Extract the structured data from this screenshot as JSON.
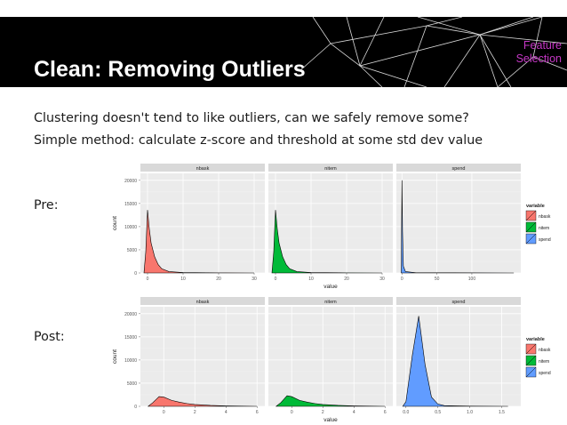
{
  "header": {
    "title": "Clean: Removing Outliers",
    "section_line1": "Feature",
    "section_line2": "Selection",
    "background": "#000000",
    "accent": "#c637c6"
  },
  "body": {
    "line1": "Clustering doesn't tend to like outliers, can we safely remove some?",
    "line2": "Simple method: calculate z-score and threshold at some std dev value",
    "pre_label": "Pre:",
    "post_label": "Post:"
  },
  "chart_data": [
    {
      "type": "area",
      "name": "pre",
      "ylabel": "count",
      "xlabel": "value",
      "ylim": [
        0,
        21500
      ],
      "yticks": [
        0,
        5000,
        10000,
        15000,
        20000
      ],
      "facets": [
        {
          "title": "nbask",
          "xlim": [
            -2,
            33
          ],
          "xticks": [
            0,
            10,
            20,
            30
          ],
          "points": [
            [
              -1,
              0
            ],
            [
              -0.5,
              4500
            ],
            [
              0,
              13600
            ],
            [
              0.5,
              9500
            ],
            [
              1,
              6500
            ],
            [
              2,
              3500
            ],
            [
              3,
              1800
            ],
            [
              4,
              900
            ],
            [
              6,
              300
            ],
            [
              10,
              80
            ],
            [
              20,
              20
            ],
            [
              30,
              0
            ]
          ]
        },
        {
          "title": "nitem",
          "xlim": [
            -2,
            33
          ],
          "xticks": [
            0,
            10,
            20,
            30
          ],
          "points": [
            [
              -1,
              0
            ],
            [
              -0.5,
              4500
            ],
            [
              0,
              13600
            ],
            [
              0.5,
              9500
            ],
            [
              1,
              6500
            ],
            [
              2,
              3500
            ],
            [
              3,
              1800
            ],
            [
              4,
              900
            ],
            [
              6,
              300
            ],
            [
              10,
              80
            ],
            [
              20,
              20
            ],
            [
              30,
              0
            ]
          ]
        },
        {
          "title": "spend",
          "xlim": [
            -8,
            170
          ],
          "xticks": [
            0,
            50,
            100
          ],
          "points": [
            [
              -1,
              0
            ],
            [
              0,
              20000
            ],
            [
              0.8,
              9000
            ],
            [
              2,
              1500
            ],
            [
              5,
              300
            ],
            [
              20,
              50
            ],
            [
              160,
              0
            ]
          ]
        }
      ]
    },
    {
      "type": "area",
      "name": "post",
      "ylabel": "count",
      "xlabel": "value",
      "ylim": [
        0,
        21500
      ],
      "yticks": [
        0,
        5000,
        10000,
        15000,
        20000
      ],
      "facets": [
        {
          "title": "nbask",
          "xlim": [
            -1.5,
            6.5
          ],
          "xticks": [
            0,
            2,
            4,
            6
          ],
          "points": [
            [
              -1,
              0
            ],
            [
              -0.7,
              800
            ],
            [
              -0.3,
              2100
            ],
            [
              0,
              2000
            ],
            [
              0.5,
              1300
            ],
            [
              1,
              900
            ],
            [
              1.5,
              600
            ],
            [
              2,
              400
            ],
            [
              3,
              200
            ],
            [
              4,
              80
            ],
            [
              5,
              30
            ],
            [
              6,
              0
            ]
          ]
        },
        {
          "title": "nitem",
          "xlim": [
            -1.5,
            6.5
          ],
          "xticks": [
            0,
            2,
            4,
            6
          ],
          "points": [
            [
              -1,
              0
            ],
            [
              -0.7,
              800
            ],
            [
              -0.3,
              2300
            ],
            [
              0,
              2100
            ],
            [
              0.5,
              1300
            ],
            [
              1,
              900
            ],
            [
              1.5,
              600
            ],
            [
              2,
              400
            ],
            [
              3,
              200
            ],
            [
              4,
              80
            ],
            [
              5,
              30
            ],
            [
              6,
              0
            ]
          ]
        },
        {
          "title": "spend",
          "xlim": [
            -0.15,
            1.8
          ],
          "xticks": [
            0.0,
            0.5,
            1.0,
            1.5
          ],
          "points": [
            [
              -0.05,
              0
            ],
            [
              0,
              1000
            ],
            [
              0.1,
              11000
            ],
            [
              0.2,
              19500
            ],
            [
              0.3,
              9000
            ],
            [
              0.4,
              2000
            ],
            [
              0.5,
              500
            ],
            [
              0.6,
              150
            ],
            [
              1.0,
              30
            ],
            [
              1.6,
              0
            ]
          ]
        }
      ],
      "legend": {
        "title": "variable",
        "position": "right",
        "items": [
          {
            "label": "nbask",
            "color": "#f8766d"
          },
          {
            "label": "nitem",
            "color": "#00ba38"
          },
          {
            "label": "spend",
            "color": "#619cff"
          }
        ]
      }
    }
  ]
}
